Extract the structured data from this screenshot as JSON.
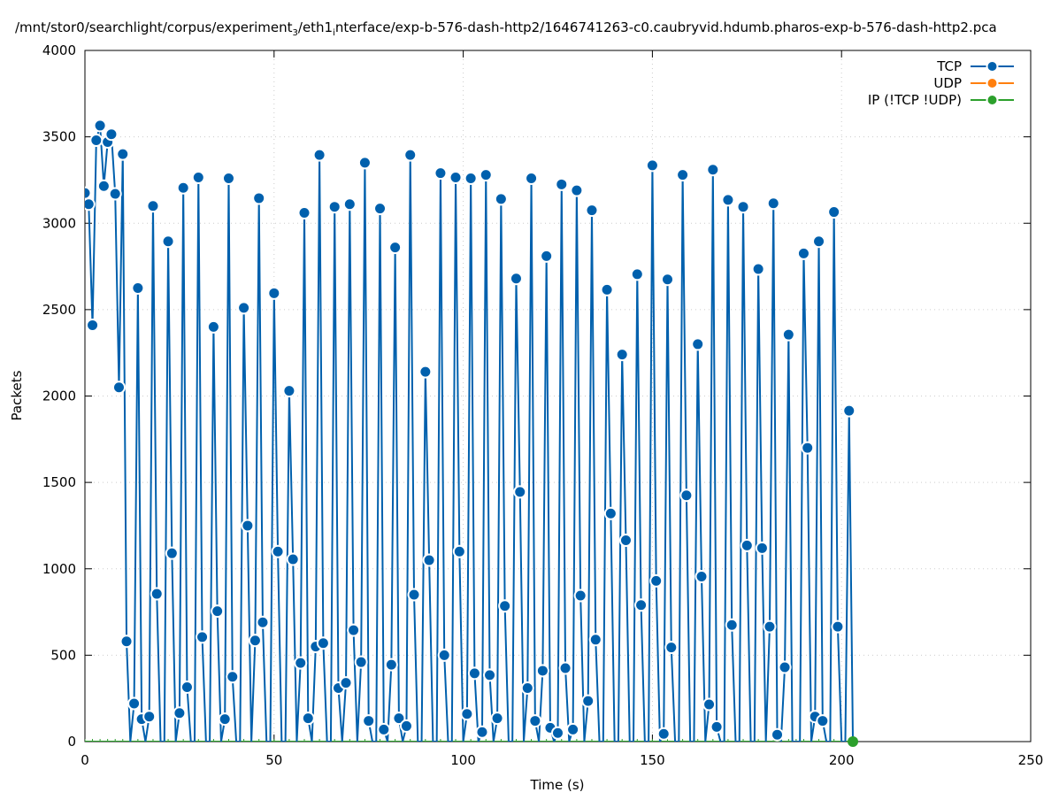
{
  "chart_data": {
    "type": "line",
    "title_parts": [
      {
        "text": "/mnt/stor0/searchlight/corpus/experiment",
        "sub": false
      },
      {
        "text": "3",
        "sub": true
      },
      {
        "text": "/eth1",
        "sub": false
      },
      {
        "text": "i",
        "sub": true
      },
      {
        "text": "nterface/exp-b-576-dash-http2/1646741263-c0.caubryvid.hdumb.pharos-exp-b-576-dash-http2.pca",
        "sub": false
      }
    ],
    "xlabel": "Time (s)",
    "ylabel": "Packets",
    "xlim": [
      0,
      250
    ],
    "ylim": [
      0,
      4000
    ],
    "xticks": [
      0,
      50,
      100,
      150,
      200,
      250
    ],
    "yticks": [
      0,
      500,
      1000,
      1500,
      2000,
      2500,
      3000,
      3500,
      4000
    ],
    "grid": true,
    "legend_position": "top-right",
    "series": [
      {
        "name": "TCP",
        "color": "#0060ad",
        "x_start": 0,
        "x_step": 1,
        "values": [
          3175,
          3110,
          2410,
          3480,
          3565,
          3215,
          3470,
          3515,
          3170,
          2050,
          3400,
          580,
          0,
          220,
          2625,
          130,
          0,
          145,
          3100,
          855,
          0,
          0,
          2895,
          1090,
          0,
          165,
          3205,
          315,
          0,
          0,
          3265,
          605,
          0,
          0,
          2400,
          755,
          0,
          130,
          3260,
          375,
          0,
          0,
          2510,
          1250,
          0,
          585,
          3145,
          690,
          0,
          0,
          2595,
          1100,
          0,
          0,
          2030,
          1055,
          0,
          455,
          3060,
          135,
          0,
          550,
          3395,
          570,
          0,
          0,
          3095,
          310,
          0,
          340,
          3110,
          645,
          0,
          460,
          3350,
          120,
          0,
          0,
          3085,
          70,
          0,
          445,
          2860,
          135,
          0,
          90,
          3395,
          850,
          0,
          0,
          2140,
          1050,
          0,
          0,
          3290,
          500,
          0,
          0,
          3265,
          1100,
          0,
          160,
          3260,
          395,
          0,
          55,
          3280,
          385,
          0,
          135,
          3140,
          785,
          0,
          0,
          2680,
          1445,
          0,
          310,
          3260,
          120,
          0,
          410,
          2810,
          80,
          0,
          50,
          3225,
          425,
          0,
          70,
          3190,
          845,
          0,
          235,
          3075,
          590,
          0,
          0,
          2615,
          1320,
          0,
          0,
          2240,
          1165,
          0,
          0,
          2705,
          790,
          0,
          0,
          3335,
          930,
          0,
          45,
          2675,
          545,
          0,
          0,
          3280,
          1425,
          0,
          0,
          2300,
          955,
          0,
          215,
          3310,
          85,
          0,
          0,
          3135,
          675,
          0,
          0,
          3095,
          1135,
          0,
          0,
          2735,
          1120,
          0,
          665,
          3115,
          40,
          0,
          430,
          2355,
          0,
          0,
          0,
          2825,
          1700,
          0,
          145,
          2895,
          120,
          0,
          0,
          3065,
          665,
          0,
          0,
          1915,
          0
        ]
      },
      {
        "name": "UDP",
        "color": "#ff7f0e",
        "values": []
      },
      {
        "name": "IP (!TCP  !UDP)",
        "color": "#2ca02c",
        "x_start": 0,
        "x_step": 1,
        "values_all_zero_until": 203,
        "points": [
          {
            "x": 203,
            "y": 0
          }
        ]
      }
    ]
  }
}
